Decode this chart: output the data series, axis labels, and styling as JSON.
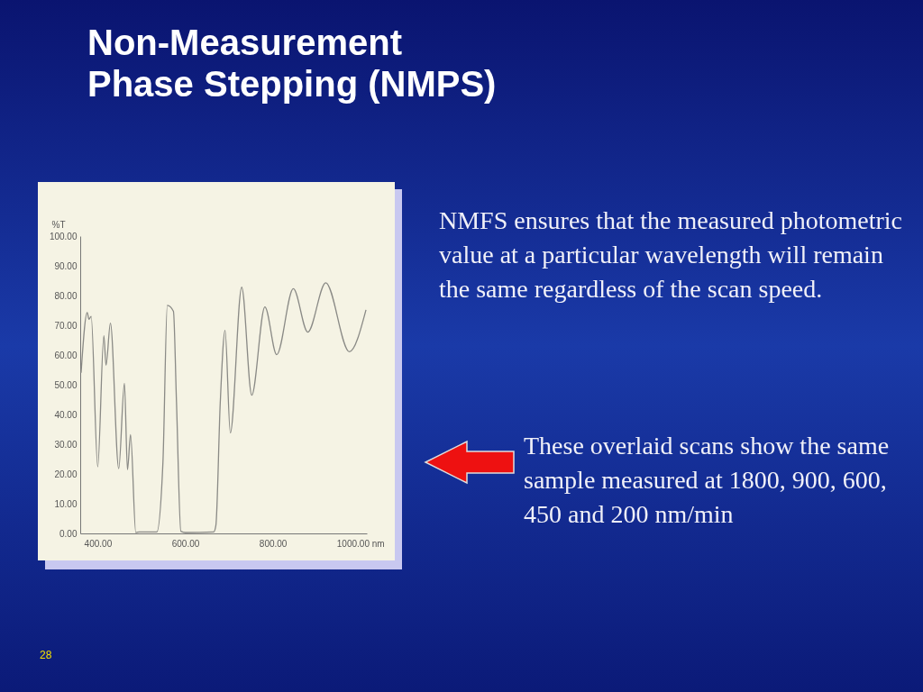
{
  "chart_data": {
    "type": "line",
    "title": "Non-Measurement\nPhase Stepping (NMPS)",
    "ylabel": "%T",
    "x": [
      362,
      376,
      380,
      385,
      400,
      414,
      419,
      429,
      448,
      461,
      468,
      475,
      487,
      495,
      535,
      549,
      559,
      573,
      580,
      590,
      600,
      665,
      670,
      680,
      691,
      703,
      729,
      752,
      782,
      809,
      847,
      880,
      921,
      975,
      1013
    ],
    "series": [
      {
        "color": "#8a8a86",
        "values": [
          54,
          74.3,
          72,
          73,
          22.4,
          66.5,
          56.6,
          70.7,
          21.8,
          50.5,
          21.4,
          33.2,
          0.3,
          0.5,
          0.5,
          23.9,
          76.7,
          74.7,
          44,
          0.7,
          0.3,
          0.5,
          2.7,
          44,
          68.3,
          33.8,
          82.8,
          46.5,
          76.2,
          60.1,
          82.3,
          67.7,
          84.3,
          61.1,
          75.2
        ]
      }
    ],
    "xlim": [
      360,
      1015
    ],
    "xticks": [
      {
        "value": 400,
        "label": "400.00"
      },
      {
        "value": 600,
        "label": "600.00"
      },
      {
        "value": 800,
        "label": "800.00"
      },
      {
        "value": 1000,
        "label": "1000.00 nm"
      }
    ],
    "ylim": [
      0,
      100
    ],
    "yticks": [
      {
        "value": 0,
        "label": "0.00"
      },
      {
        "value": 10,
        "label": "10.00"
      },
      {
        "value": 20,
        "label": "20.00"
      },
      {
        "value": 30,
        "label": "30.00"
      },
      {
        "value": 40,
        "label": "40.00"
      },
      {
        "value": 50,
        "label": "50.00"
      },
      {
        "value": 60,
        "label": "60.00"
      },
      {
        "value": 70,
        "label": "70.00"
      },
      {
        "value": 80,
        "label": "80.00"
      },
      {
        "value": 90,
        "label": "90.00"
      },
      {
        "value": 100,
        "label": "100.00"
      }
    ],
    "grid": false,
    "legend": false,
    "annotations": [
      "NMFS ensures that the measured photometric value at a particular wavelength will remain the same regardless of the scan speed.",
      "These overlaid scans show the same sample measured at 1800, 900, 600, 450 and 200 nm/min",
      "28"
    ]
  }
}
